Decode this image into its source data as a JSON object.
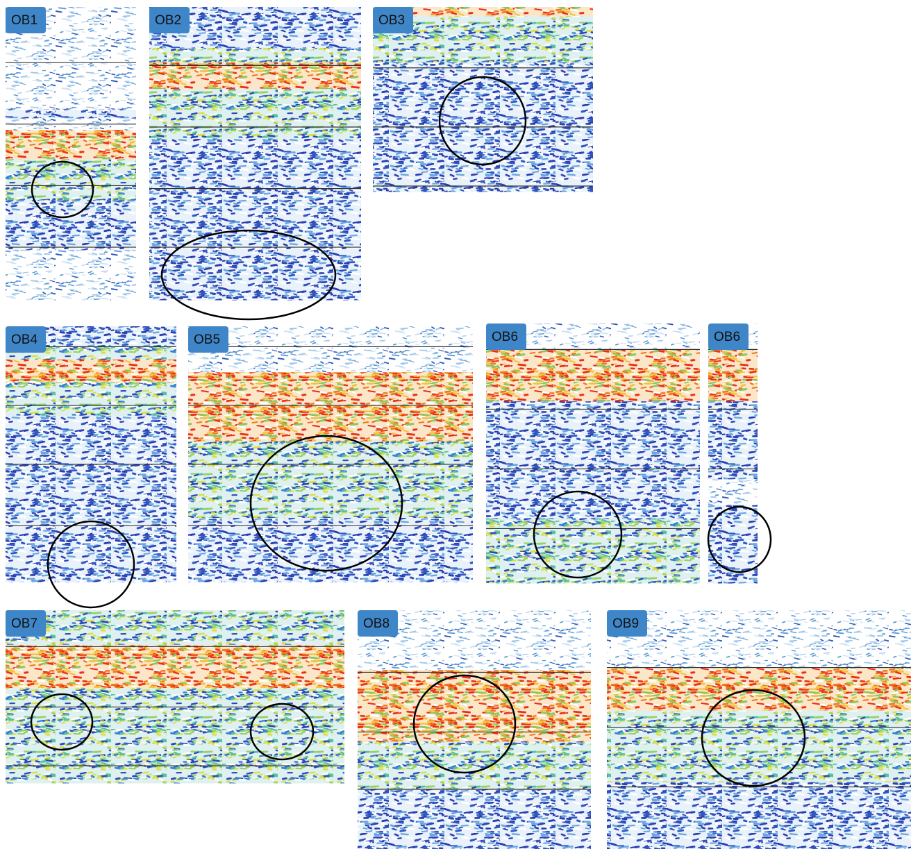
{
  "panels": [
    {
      "label": "OB1"
    },
    {
      "label": "OB2"
    },
    {
      "label": "OB3"
    },
    {
      "label": "OB4"
    },
    {
      "label": "OB5"
    },
    {
      "label": "OB6"
    },
    {
      "label": "OB6"
    },
    {
      "label": "OB7"
    },
    {
      "label": "OB8"
    },
    {
      "label": "OB9"
    }
  ]
}
